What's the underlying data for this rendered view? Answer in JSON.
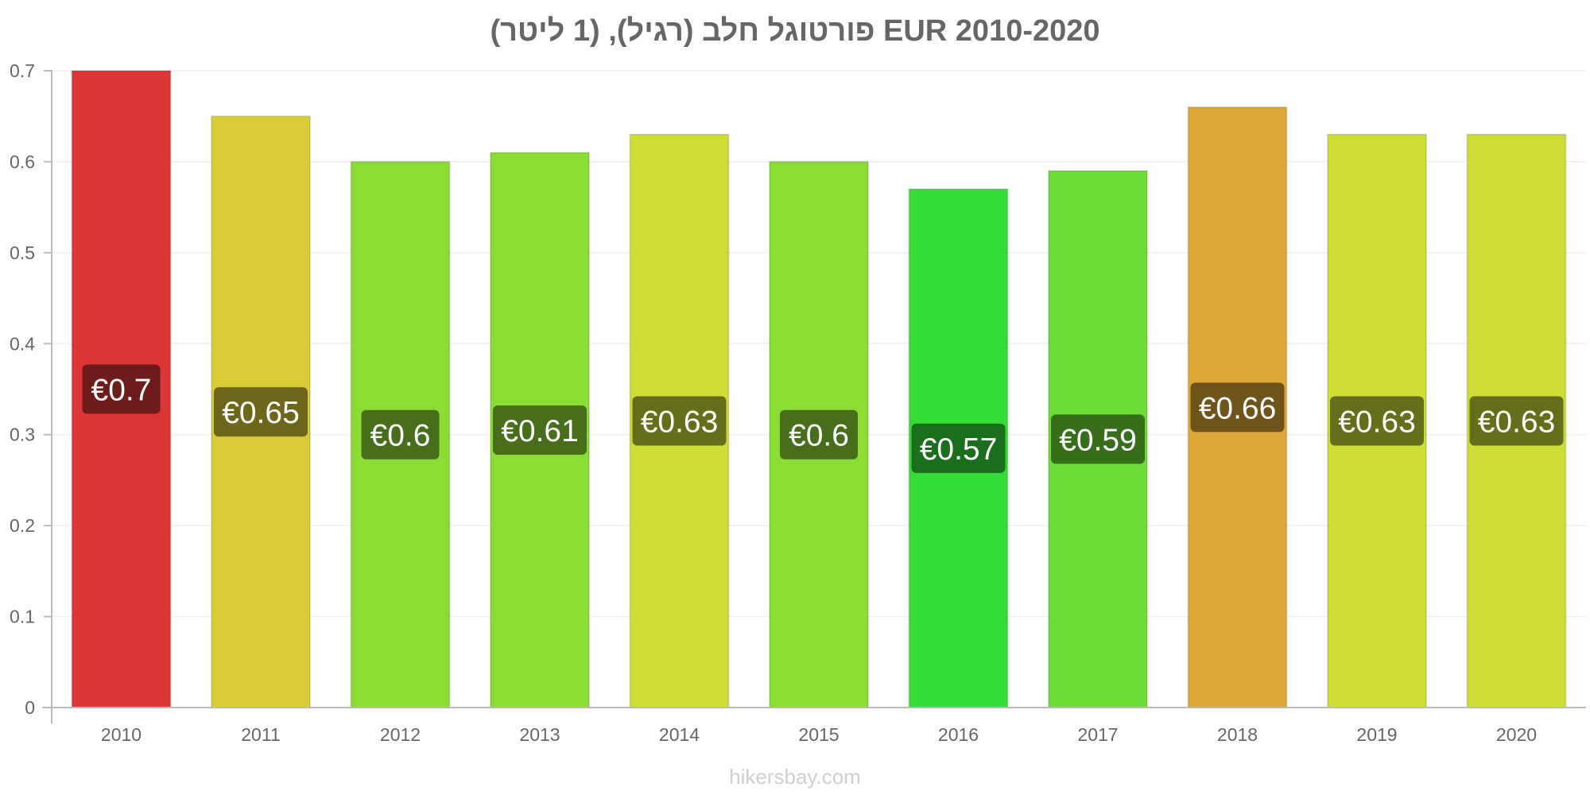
{
  "title": "פורטוגל חלב (רגיל), (1 ליטר) EUR 2010-2020",
  "watermark": "hikersbay.com",
  "chart_data": {
    "type": "bar",
    "title": "פורטוגל חלב (רגיל), (1 ליטר) EUR 2010-2020",
    "categories": [
      "2010",
      "2011",
      "2012",
      "2013",
      "2014",
      "2015",
      "2016",
      "2017",
      "2018",
      "2019",
      "2020"
    ],
    "values": [
      0.7,
      0.65,
      0.6,
      0.61,
      0.63,
      0.6,
      0.57,
      0.59,
      0.66,
      0.63,
      0.63
    ],
    "value_labels": [
      "€0.7",
      "€0.65",
      "€0.6",
      "€0.61",
      "€0.63",
      "€0.6",
      "€0.57",
      "€0.59",
      "€0.66",
      "€0.63",
      "€0.63"
    ],
    "bar_colors": [
      "#dc3636",
      "#dccb36",
      "#8cdc36",
      "#8cdc36",
      "#cedc36",
      "#8cdc36",
      "#36dc36",
      "#6ddc36",
      "#dca836",
      "#cedc36",
      "#cedc36"
    ],
    "label_bg_colors": [
      "#6e1b1b",
      "#6e661b",
      "#466e1b",
      "#466e1b",
      "#676e1b",
      "#466e1b",
      "#1b6e1b",
      "#376e1b",
      "#6e541b",
      "#676e1b",
      "#676e1b"
    ],
    "y_ticks": [
      "0",
      "0.1",
      "0.2",
      "0.3",
      "0.4",
      "0.5",
      "0.6",
      "0.7"
    ],
    "ylim": [
      0,
      0.7
    ],
    "xlabel": "",
    "ylabel": "",
    "grid": true
  }
}
